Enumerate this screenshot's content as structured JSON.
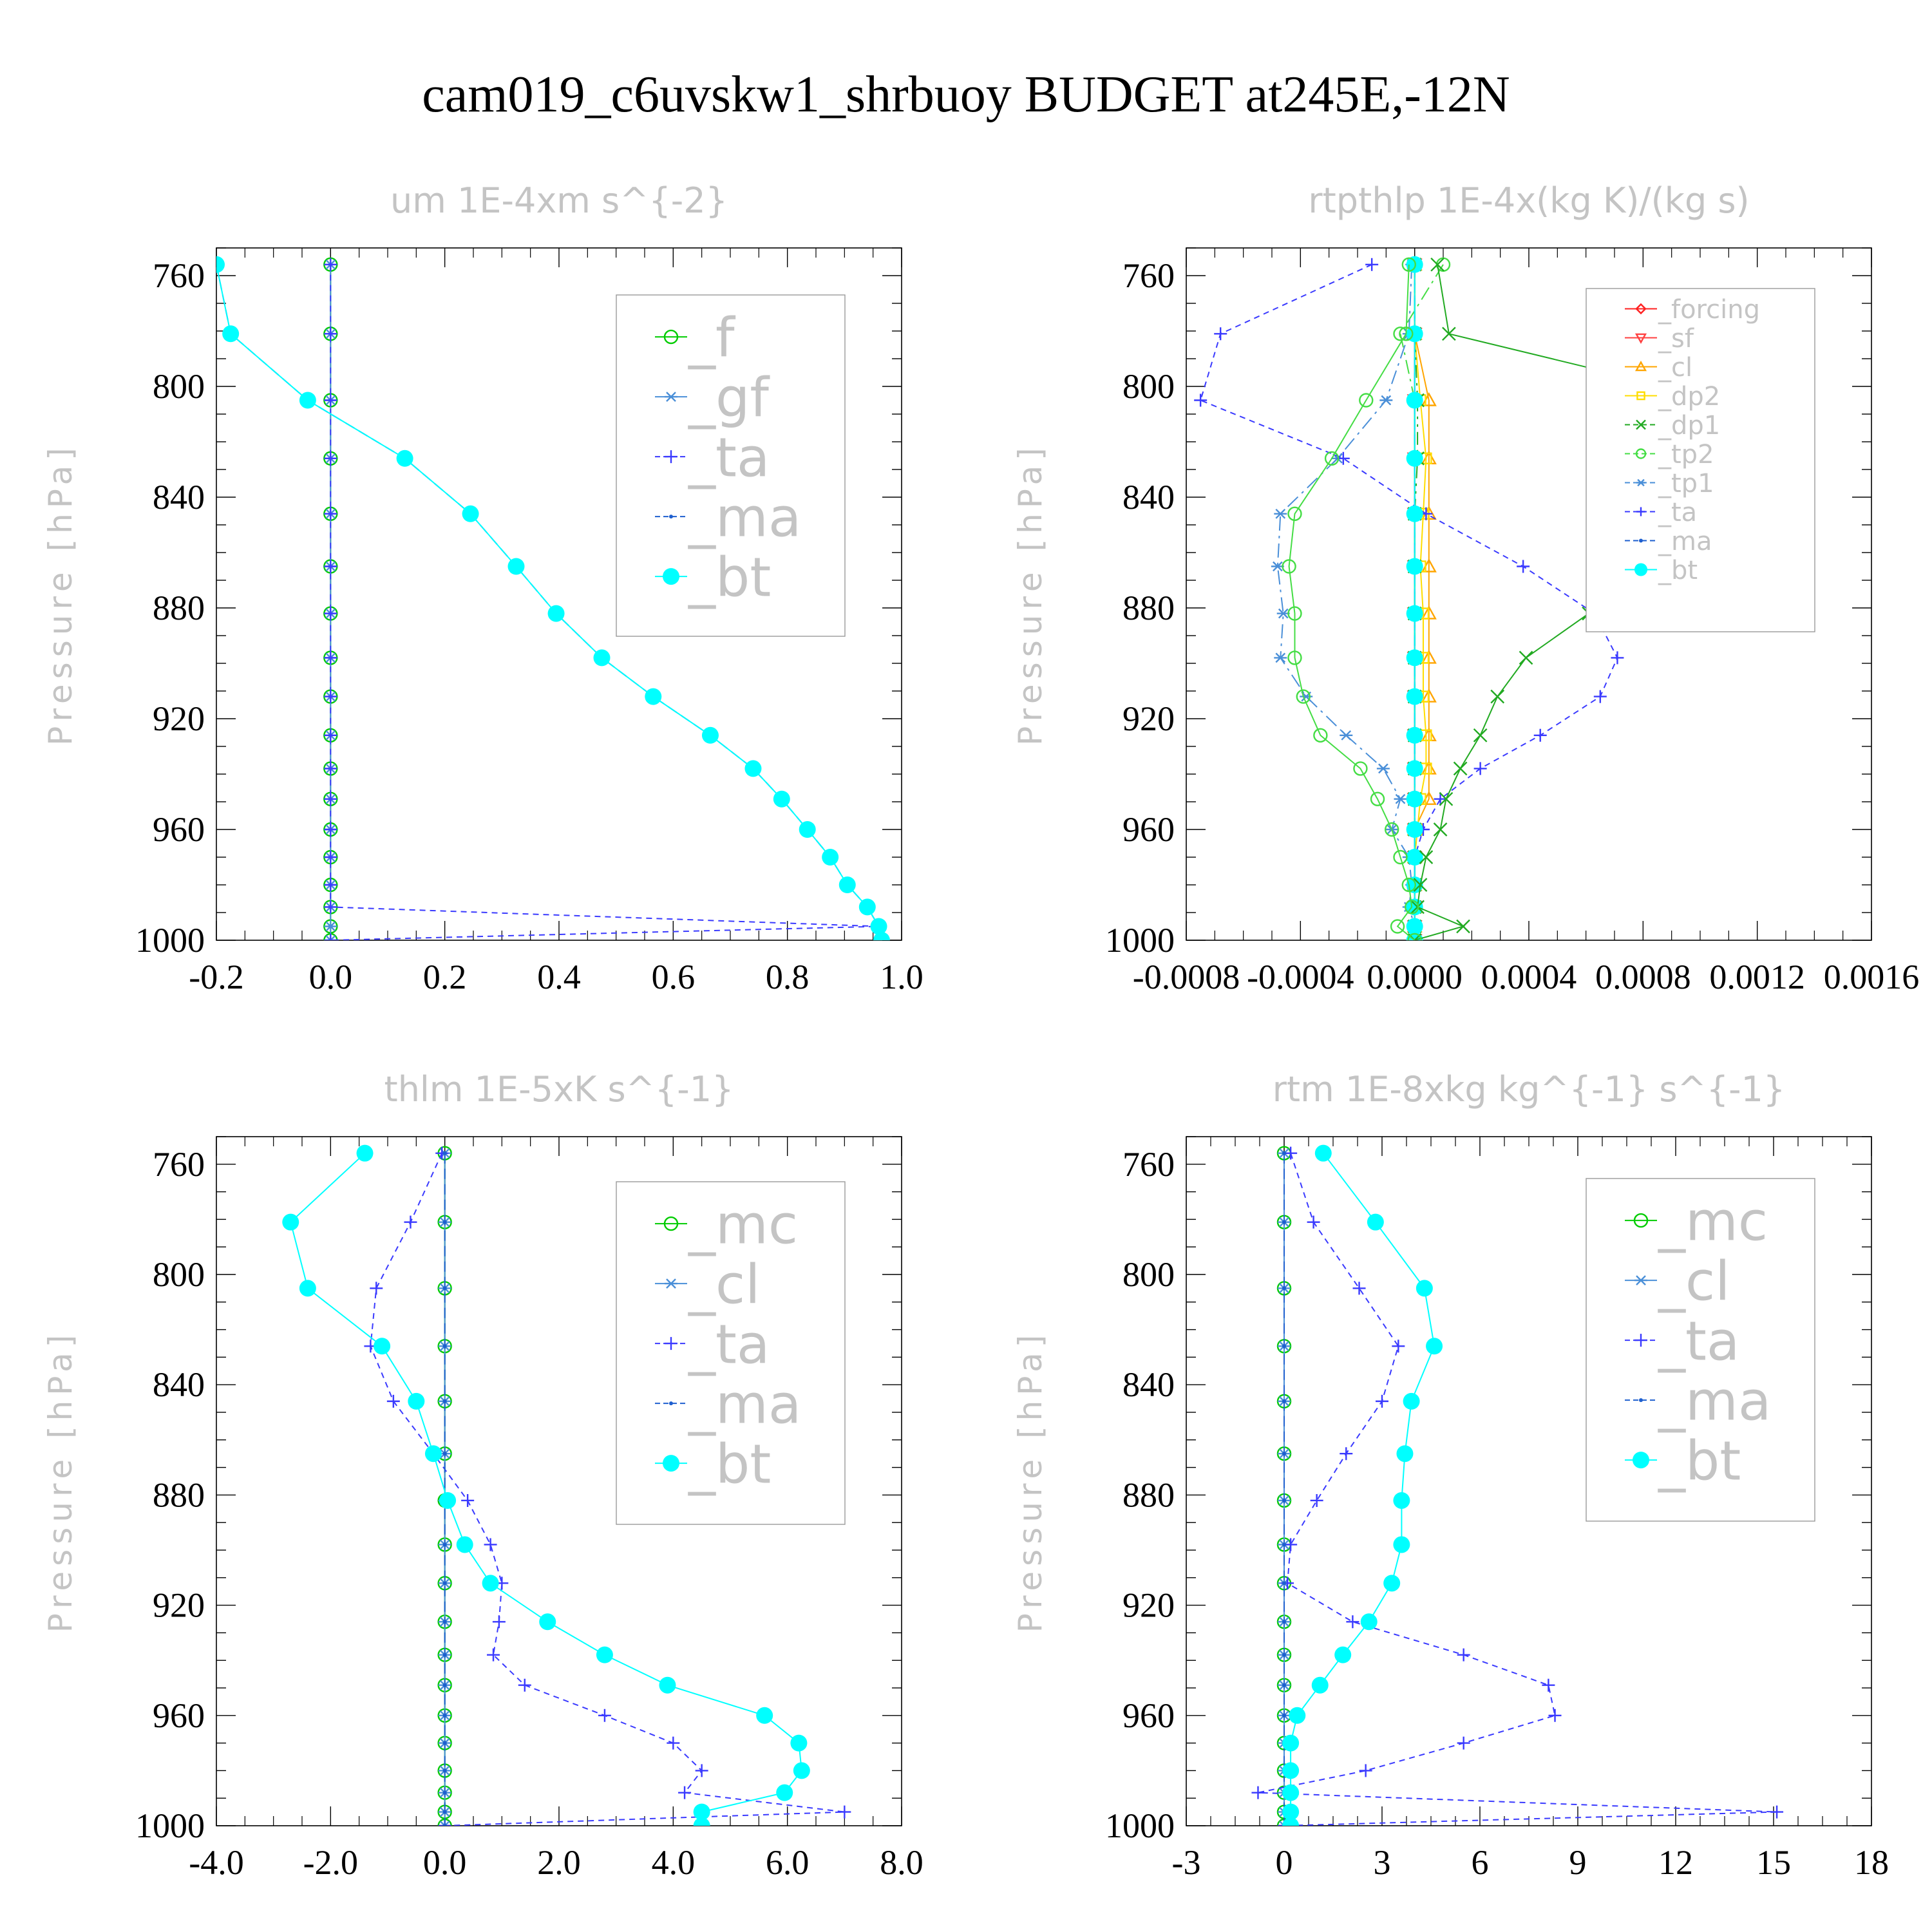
{
  "title": "cam019_c6uvskw1_shrbuoy  BUDGET at245E,-12N",
  "chart_data": [
    {
      "type": "line",
      "title": "um   1E-4xm s^{-2}",
      "ylabel": "Pressure [hPa]",
      "xlim": [
        -0.2,
        1.0
      ],
      "ylim": [
        1000,
        750
      ],
      "xticks": [
        -0.2,
        0.0,
        0.2,
        0.4,
        0.6,
        0.8,
        1.0
      ],
      "xtick_labels": [
        "-0.2",
        "0.0",
        "0.2",
        "0.4",
        "0.6",
        "0.8",
        "1.0"
      ],
      "yticks": [
        760,
        800,
        840,
        880,
        920,
        960,
        1000
      ],
      "legend_position": "top-right",
      "levels": [
        756,
        781,
        805,
        826,
        846,
        865,
        882,
        898,
        912,
        926,
        938,
        949,
        960,
        970,
        980,
        988,
        995,
        1000
      ],
      "series": [
        {
          "name": "_f",
          "color": "#00cc00",
          "marker": "circle",
          "values": [
            0,
            0,
            0,
            0,
            0,
            0,
            0,
            0,
            0,
            0,
            0,
            0,
            0,
            0,
            0,
            0,
            0,
            0
          ]
        },
        {
          "name": "_gf",
          "color": "#4a8fd8",
          "marker": "star",
          "values": [
            0,
            0,
            0,
            0,
            0,
            0,
            0,
            0,
            0,
            0,
            0,
            0,
            0,
            0,
            0,
            0,
            0,
            0
          ]
        },
        {
          "name": "_ta",
          "color": "#3a3aff",
          "marker": "plus",
          "values": [
            0,
            0,
            0,
            0,
            0,
            0,
            0,
            0,
            0,
            0,
            0,
            0,
            0,
            0,
            0,
            0,
            0.96,
            0
          ]
        },
        {
          "name": "_ma",
          "color": "#1e5fcf",
          "marker": "dot",
          "values": [
            -0.2,
            -0.175,
            -0.04,
            0.13,
            0.245,
            0.325,
            0.395,
            0.475,
            0.565,
            0.665,
            0.74,
            0.79,
            0.835,
            0.875,
            0.905,
            0.94,
            0.96,
            0.965
          ]
        },
        {
          "name": "_bt",
          "color": "#00ffff",
          "marker": "filled",
          "values": [
            -0.2,
            -0.175,
            -0.04,
            0.13,
            0.245,
            0.325,
            0.395,
            0.475,
            0.565,
            0.665,
            0.74,
            0.79,
            0.835,
            0.875,
            0.905,
            0.94,
            0.96,
            0.965
          ]
        }
      ]
    },
    {
      "type": "line",
      "title": "rtpthlp   1E-4x(kg K)/(kg s)",
      "ylabel": "Pressure [hPa]",
      "xlim": [
        -0.0008,
        0.0016
      ],
      "ylim": [
        1000,
        750
      ],
      "xticks": [
        -0.0008,
        -0.0004,
        0.0,
        0.0004,
        0.0008,
        0.0012,
        0.0016
      ],
      "xtick_labels": [
        "-0.0008",
        "-0.0004",
        "0.0000",
        "0.0004",
        "0.0008",
        "0.0012",
        "0.0016"
      ],
      "yticks": [
        760,
        800,
        840,
        880,
        920,
        960,
        1000
      ],
      "legend_position": "top-right",
      "levels": [
        756,
        781,
        805,
        826,
        846,
        865,
        882,
        898,
        912,
        926,
        938,
        949,
        960,
        970,
        980,
        988,
        995,
        1000
      ],
      "series": [
        {
          "name": "_forcing",
          "color": "#ff2020",
          "marker": "diamond",
          "values": [
            0,
            0,
            0,
            0,
            0,
            0,
            0,
            0,
            0,
            0,
            0,
            0,
            0,
            0,
            0,
            0,
            0,
            0
          ]
        },
        {
          "name": "_sf",
          "color": "#ff4040",
          "marker": "triangle-down",
          "values": [
            0,
            0,
            0,
            0,
            0,
            0,
            0,
            0,
            0,
            0,
            0,
            0,
            0,
            0,
            0,
            0,
            0,
            0
          ]
        },
        {
          "name": "_cl",
          "color": "#ffa500",
          "marker": "triangle",
          "values": [
            0,
            0,
            5e-05,
            5e-05,
            5e-05,
            5e-05,
            5e-05,
            5e-05,
            5e-05,
            5e-05,
            5e-05,
            5e-05,
            0,
            0,
            0,
            0,
            0,
            0
          ]
        },
        {
          "name": "_dp2",
          "color": "#ffdd00",
          "marker": "square",
          "values": [
            0,
            0,
            2e-05,
            4e-05,
            3e-05,
            2e-05,
            3e-05,
            3e-05,
            3e-05,
            4e-05,
            4e-05,
            2e-05,
            1e-05,
            0,
            0,
            0,
            0,
            0
          ]
        },
        {
          "name": "_dp1",
          "color": "#22aa22",
          "marker": "x",
          "values": [
            0,
            0,
            1e-05,
            1e-05,
            0,
            0,
            0,
            0,
            0,
            0,
            0,
            0,
            0,
            0,
            0,
            0,
            0,
            0
          ]
        },
        {
          "name": "_tp2",
          "color": "#44dd44",
          "marker": "circle",
          "values": [
            0.0001,
            -5e-05,
            0,
            0,
            0,
            0,
            0,
            0,
            0,
            0,
            0,
            0,
            0,
            0,
            0,
            0,
            0,
            0
          ]
        },
        {
          "name": "_tp1",
          "color": "#4a8fd8",
          "marker": "star",
          "values": [
            -1e-05,
            -2e-05,
            -0.0001,
            -0.00027,
            -0.00047,
            -0.00048,
            -0.00046,
            -0.00047,
            -0.00038,
            -0.00024,
            -0.00011,
            -5e-05,
            -8e-05,
            -2e-05,
            -1e-05,
            -2e-05,
            0,
            0
          ]
        },
        {
          "name": "_ta",
          "color": "#3a3aff",
          "marker": "plus",
          "values": [
            -0.00015,
            -0.00068,
            -0.00075,
            -0.00025,
            4e-05,
            0.00038,
            0.00063,
            0.00071,
            0.00065,
            0.00044,
            0.00023,
            9e-05,
            3e-05,
            0,
            0,
            0,
            0,
            0
          ]
        },
        {
          "name": "_ma",
          "color": "#1e5fcf",
          "marker": "dot",
          "values": [
            0,
            0,
            0,
            0,
            0,
            0,
            0,
            0,
            0,
            0,
            0,
            0,
            0,
            0,
            0,
            0,
            0,
            0
          ]
        },
        {
          "name": "_bt",
          "color": "#00ffff",
          "marker": "filled",
          "values": [
            0,
            0,
            0,
            0,
            0,
            0,
            0,
            0,
            0,
            0,
            0,
            0,
            0,
            0,
            0,
            0,
            0,
            0
          ]
        },
        {
          "name": "",
          "color": "#22aa22",
          "marker": "x",
          "values": [
            8e-05,
            0.00012,
            0.00108,
            0.00113,
            0.00094,
            0.00075,
            0.00061,
            0.00039,
            0.00029,
            0.00023,
            0.00016,
            0.00011,
            9e-05,
            4e-05,
            2e-05,
            1e-05,
            0.00017,
            0
          ]
        },
        {
          "name": "",
          "color": "#44dd44",
          "marker": "circle",
          "values": [
            -2e-05,
            -3e-05,
            -0.00017,
            -0.00029,
            -0.00042,
            -0.00044,
            -0.00042,
            -0.00042,
            -0.00039,
            -0.00033,
            -0.00019,
            -0.00013,
            -8e-05,
            -5e-05,
            -2e-05,
            -1e-05,
            -6e-05,
            0
          ]
        }
      ]
    },
    {
      "type": "line",
      "title": "thlm   1E-5xK s^{-1}",
      "ylabel": "Pressure [hPa]",
      "xlim": [
        -4.0,
        8.0
      ],
      "ylim": [
        1000,
        750
      ],
      "xticks": [
        -4.0,
        -2.0,
        0.0,
        2.0,
        4.0,
        6.0,
        8.0
      ],
      "xtick_labels": [
        "-4.0",
        "-2.0",
        "0.0",
        "2.0",
        "4.0",
        "6.0",
        "8.0"
      ],
      "yticks": [
        760,
        800,
        840,
        880,
        920,
        960,
        1000
      ],
      "legend_position": "top-right",
      "levels": [
        756,
        781,
        805,
        826,
        846,
        865,
        882,
        898,
        912,
        926,
        938,
        949,
        960,
        970,
        980,
        988,
        995,
        1000
      ],
      "series": [
        {
          "name": "_mc",
          "color": "#00cc00",
          "marker": "circle",
          "values": [
            0,
            0,
            0,
            0,
            0,
            0,
            0,
            0,
            0,
            0,
            0,
            0,
            0,
            0,
            0,
            0,
            0,
            0
          ]
        },
        {
          "name": "_cl",
          "color": "#4a8fd8",
          "marker": "star",
          "values": [
            0,
            0,
            0,
            0,
            0,
            0,
            0,
            0,
            0,
            0,
            0,
            0,
            0,
            0,
            0,
            0,
            0,
            0
          ]
        },
        {
          "name": "_ta",
          "color": "#3a3aff",
          "marker": "plus",
          "values": [
            -0.05,
            -0.6,
            -1.2,
            -1.3,
            -0.9,
            -0.2,
            0.4,
            0.8,
            1.0,
            0.95,
            0.85,
            1.4,
            2.8,
            4.0,
            4.5,
            4.2,
            7.0,
            0
          ]
        },
        {
          "name": "_ma",
          "color": "#1e5fcf",
          "marker": "dot",
          "values": [
            0,
            0,
            0,
            0,
            0,
            0,
            0,
            0,
            0,
            0,
            0,
            0,
            0,
            0,
            0,
            0,
            0,
            0
          ]
        },
        {
          "name": "_bt",
          "color": "#00ffff",
          "marker": "filled",
          "values": [
            -1.4,
            -2.7,
            -2.4,
            -1.1,
            -0.5,
            -0.2,
            0.05,
            0.35,
            0.8,
            1.8,
            2.8,
            3.9,
            5.6,
            6.2,
            6.25,
            5.95,
            4.5,
            4.5
          ]
        }
      ]
    },
    {
      "type": "line",
      "title": "rtm   1E-8xkg kg^{-1} s^{-1}",
      "ylabel": "Pressure [hPa]",
      "xlim": [
        -3,
        18
      ],
      "ylim": [
        1000,
        750
      ],
      "xticks": [
        -3,
        0,
        3,
        6,
        9,
        12,
        15,
        18
      ],
      "xtick_labels": [
        "-3",
        "0",
        "3",
        "6",
        "9",
        "12",
        "15",
        "18"
      ],
      "yticks": [
        760,
        800,
        840,
        880,
        920,
        960,
        1000
      ],
      "legend_position": "top-right",
      "levels": [
        756,
        781,
        805,
        826,
        846,
        865,
        882,
        898,
        912,
        926,
        938,
        949,
        960,
        970,
        980,
        988,
        995,
        1000
      ],
      "series": [
        {
          "name": "_mc",
          "color": "#00cc00",
          "marker": "circle",
          "values": [
            0,
            0,
            0,
            0,
            0,
            0,
            0,
            0,
            0,
            0,
            0,
            0,
            0,
            0,
            0,
            0,
            0,
            0
          ]
        },
        {
          "name": "_cl",
          "color": "#4a8fd8",
          "marker": "star",
          "values": [
            0,
            0,
            0,
            0,
            0,
            0,
            0,
            0,
            0,
            0,
            0,
            0,
            0,
            0,
            0,
            0,
            0,
            0
          ]
        },
        {
          "name": "_ta",
          "color": "#3a3aff",
          "marker": "plus",
          "values": [
            0.2,
            0.9,
            2.3,
            3.5,
            3.0,
            1.9,
            1.0,
            0.2,
            0.1,
            2.1,
            5.5,
            8.1,
            8.3,
            5.5,
            2.5,
            -0.8,
            15.1,
            0
          ]
        },
        {
          "name": "_ma",
          "color": "#1e5fcf",
          "marker": "dot",
          "values": [
            0,
            0,
            0,
            0,
            0,
            0,
            0,
            0,
            0,
            0,
            0,
            0,
            0,
            0,
            0,
            0,
            0,
            0
          ]
        },
        {
          "name": "_bt",
          "color": "#00ffff",
          "marker": "filled",
          "values": [
            1.2,
            2.8,
            4.3,
            4.6,
            3.9,
            3.7,
            3.6,
            3.6,
            3.3,
            2.6,
            1.8,
            1.1,
            0.4,
            0.2,
            0.2,
            0.2,
            0.2,
            0.2
          ]
        }
      ]
    }
  ]
}
